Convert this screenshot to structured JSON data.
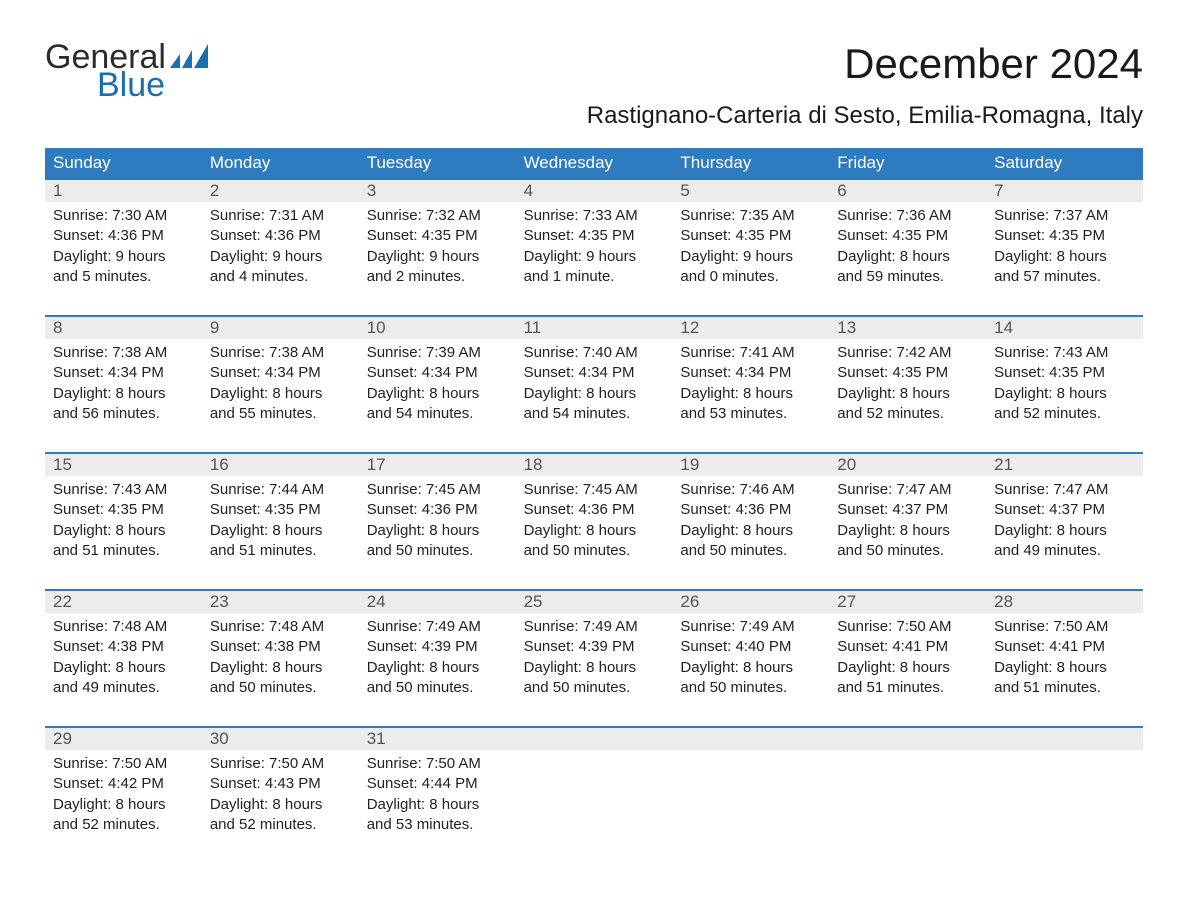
{
  "brand": {
    "word1": "General",
    "word2": "Blue",
    "text_color": "#2b2b2b",
    "accent_color": "#1a6fb0"
  },
  "title": "December 2024",
  "location": "Rastignano-Carteria di Sesto, Emilia-Romagna, Italy",
  "colors": {
    "header_bg": "#2f7bbf",
    "header_text": "#ffffff",
    "daynum_bg": "#ececec",
    "week_border": "#2f7bbf",
    "body_text": "#222222",
    "daynum_text": "#555555",
    "background": "#ffffff"
  },
  "fonts": {
    "title_size_pt": 32,
    "location_size_pt": 18,
    "weekday_size_pt": 13,
    "daynum_size_pt": 13,
    "cell_size_pt": 11
  },
  "weekdays": [
    "Sunday",
    "Monday",
    "Tuesday",
    "Wednesday",
    "Thursday",
    "Friday",
    "Saturday"
  ],
  "weeks": [
    {
      "days": [
        {
          "n": "1",
          "sunrise": "Sunrise: 7:30 AM",
          "sunset": "Sunset: 4:36 PM",
          "d1": "Daylight: 9 hours",
          "d2": "and 5 minutes."
        },
        {
          "n": "2",
          "sunrise": "Sunrise: 7:31 AM",
          "sunset": "Sunset: 4:36 PM",
          "d1": "Daylight: 9 hours",
          "d2": "and 4 minutes."
        },
        {
          "n": "3",
          "sunrise": "Sunrise: 7:32 AM",
          "sunset": "Sunset: 4:35 PM",
          "d1": "Daylight: 9 hours",
          "d2": "and 2 minutes."
        },
        {
          "n": "4",
          "sunrise": "Sunrise: 7:33 AM",
          "sunset": "Sunset: 4:35 PM",
          "d1": "Daylight: 9 hours",
          "d2": "and 1 minute."
        },
        {
          "n": "5",
          "sunrise": "Sunrise: 7:35 AM",
          "sunset": "Sunset: 4:35 PM",
          "d1": "Daylight: 9 hours",
          "d2": "and 0 minutes."
        },
        {
          "n": "6",
          "sunrise": "Sunrise: 7:36 AM",
          "sunset": "Sunset: 4:35 PM",
          "d1": "Daylight: 8 hours",
          "d2": "and 59 minutes."
        },
        {
          "n": "7",
          "sunrise": "Sunrise: 7:37 AM",
          "sunset": "Sunset: 4:35 PM",
          "d1": "Daylight: 8 hours",
          "d2": "and 57 minutes."
        }
      ]
    },
    {
      "days": [
        {
          "n": "8",
          "sunrise": "Sunrise: 7:38 AM",
          "sunset": "Sunset: 4:34 PM",
          "d1": "Daylight: 8 hours",
          "d2": "and 56 minutes."
        },
        {
          "n": "9",
          "sunrise": "Sunrise: 7:38 AM",
          "sunset": "Sunset: 4:34 PM",
          "d1": "Daylight: 8 hours",
          "d2": "and 55 minutes."
        },
        {
          "n": "10",
          "sunrise": "Sunrise: 7:39 AM",
          "sunset": "Sunset: 4:34 PM",
          "d1": "Daylight: 8 hours",
          "d2": "and 54 minutes."
        },
        {
          "n": "11",
          "sunrise": "Sunrise: 7:40 AM",
          "sunset": "Sunset: 4:34 PM",
          "d1": "Daylight: 8 hours",
          "d2": "and 54 minutes."
        },
        {
          "n": "12",
          "sunrise": "Sunrise: 7:41 AM",
          "sunset": "Sunset: 4:34 PM",
          "d1": "Daylight: 8 hours",
          "d2": "and 53 minutes."
        },
        {
          "n": "13",
          "sunrise": "Sunrise: 7:42 AM",
          "sunset": "Sunset: 4:35 PM",
          "d1": "Daylight: 8 hours",
          "d2": "and 52 minutes."
        },
        {
          "n": "14",
          "sunrise": "Sunrise: 7:43 AM",
          "sunset": "Sunset: 4:35 PM",
          "d1": "Daylight: 8 hours",
          "d2": "and 52 minutes."
        }
      ]
    },
    {
      "days": [
        {
          "n": "15",
          "sunrise": "Sunrise: 7:43 AM",
          "sunset": "Sunset: 4:35 PM",
          "d1": "Daylight: 8 hours",
          "d2": "and 51 minutes."
        },
        {
          "n": "16",
          "sunrise": "Sunrise: 7:44 AM",
          "sunset": "Sunset: 4:35 PM",
          "d1": "Daylight: 8 hours",
          "d2": "and 51 minutes."
        },
        {
          "n": "17",
          "sunrise": "Sunrise: 7:45 AM",
          "sunset": "Sunset: 4:36 PM",
          "d1": "Daylight: 8 hours",
          "d2": "and 50 minutes."
        },
        {
          "n": "18",
          "sunrise": "Sunrise: 7:45 AM",
          "sunset": "Sunset: 4:36 PM",
          "d1": "Daylight: 8 hours",
          "d2": "and 50 minutes."
        },
        {
          "n": "19",
          "sunrise": "Sunrise: 7:46 AM",
          "sunset": "Sunset: 4:36 PM",
          "d1": "Daylight: 8 hours",
          "d2": "and 50 minutes."
        },
        {
          "n": "20",
          "sunrise": "Sunrise: 7:47 AM",
          "sunset": "Sunset: 4:37 PM",
          "d1": "Daylight: 8 hours",
          "d2": "and 50 minutes."
        },
        {
          "n": "21",
          "sunrise": "Sunrise: 7:47 AM",
          "sunset": "Sunset: 4:37 PM",
          "d1": "Daylight: 8 hours",
          "d2": "and 49 minutes."
        }
      ]
    },
    {
      "days": [
        {
          "n": "22",
          "sunrise": "Sunrise: 7:48 AM",
          "sunset": "Sunset: 4:38 PM",
          "d1": "Daylight: 8 hours",
          "d2": "and 49 minutes."
        },
        {
          "n": "23",
          "sunrise": "Sunrise: 7:48 AM",
          "sunset": "Sunset: 4:38 PM",
          "d1": "Daylight: 8 hours",
          "d2": "and 50 minutes."
        },
        {
          "n": "24",
          "sunrise": "Sunrise: 7:49 AM",
          "sunset": "Sunset: 4:39 PM",
          "d1": "Daylight: 8 hours",
          "d2": "and 50 minutes."
        },
        {
          "n": "25",
          "sunrise": "Sunrise: 7:49 AM",
          "sunset": "Sunset: 4:39 PM",
          "d1": "Daylight: 8 hours",
          "d2": "and 50 minutes."
        },
        {
          "n": "26",
          "sunrise": "Sunrise: 7:49 AM",
          "sunset": "Sunset: 4:40 PM",
          "d1": "Daylight: 8 hours",
          "d2": "and 50 minutes."
        },
        {
          "n": "27",
          "sunrise": "Sunrise: 7:50 AM",
          "sunset": "Sunset: 4:41 PM",
          "d1": "Daylight: 8 hours",
          "d2": "and 51 minutes."
        },
        {
          "n": "28",
          "sunrise": "Sunrise: 7:50 AM",
          "sunset": "Sunset: 4:41 PM",
          "d1": "Daylight: 8 hours",
          "d2": "and 51 minutes."
        }
      ]
    },
    {
      "days": [
        {
          "n": "29",
          "sunrise": "Sunrise: 7:50 AM",
          "sunset": "Sunset: 4:42 PM",
          "d1": "Daylight: 8 hours",
          "d2": "and 52 minutes."
        },
        {
          "n": "30",
          "sunrise": "Sunrise: 7:50 AM",
          "sunset": "Sunset: 4:43 PM",
          "d1": "Daylight: 8 hours",
          "d2": "and 52 minutes."
        },
        {
          "n": "31",
          "sunrise": "Sunrise: 7:50 AM",
          "sunset": "Sunset: 4:44 PM",
          "d1": "Daylight: 8 hours",
          "d2": "and 53 minutes."
        },
        null,
        null,
        null,
        null
      ]
    }
  ]
}
